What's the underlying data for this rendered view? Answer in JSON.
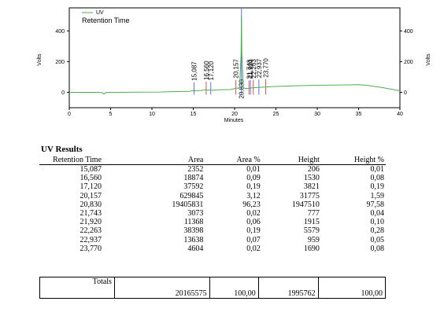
{
  "chart_data": {
    "type": "line",
    "xlabel": "Minutes",
    "ylabel_left": "Volts",
    "ylabel_right": "Volts",
    "xlim": [
      0,
      40
    ],
    "ylim": [
      -100,
      550
    ],
    "x_ticks": [
      0,
      5,
      10,
      15,
      20,
      25,
      30,
      35,
      40
    ],
    "y_ticks": [
      0,
      200,
      400
    ],
    "legend": {
      "entries": [
        "UV",
        "Retention Time"
      ],
      "placement": "top-left"
    },
    "series": [
      {
        "name": "UV",
        "color": "#4caf50",
        "x": [
          0,
          3.5,
          4.0,
          4.2,
          4.4,
          4.6,
          4.8,
          5.2,
          8,
          11,
          12,
          14.5,
          15.0,
          15.09,
          15.2,
          16.0,
          16.56,
          16.7,
          17.12,
          17.3,
          18,
          19.5,
          20.0,
          20.16,
          20.3,
          20.6,
          20.78,
          20.83,
          20.88,
          21.05,
          21.3,
          21.74,
          21.92,
          22.26,
          22.94,
          23.77,
          25,
          27,
          30,
          33,
          35,
          36,
          38,
          40
        ],
        "y": [
          0,
          0,
          -2,
          -12,
          -3,
          0,
          0,
          0,
          1,
          2,
          4,
          6,
          12,
          14,
          10,
          12,
          18,
          14,
          16,
          13,
          16,
          18,
          24,
          30,
          26,
          30,
          240,
          500,
          260,
          30,
          25,
          26,
          28,
          30,
          32,
          35,
          38,
          42,
          46,
          48,
          50,
          46,
          30,
          10
        ]
      }
    ],
    "peak_labels": [
      "15,087",
      "16,560",
      "17,120",
      "20,157",
      "20,830",
      "21,743",
      "21,920",
      "22,263",
      "22,937",
      "23,770"
    ],
    "peak_times": [
      15.087,
      16.56,
      17.12,
      20.157,
      20.83,
      21.743,
      21.92,
      22.263,
      22.937,
      23.77
    ]
  },
  "results": {
    "title": "UV Results",
    "headers": [
      "Retention Time",
      "Area",
      "Area %",
      "Height",
      "Height %"
    ],
    "rows": [
      [
        "15,087",
        "2352",
        "0,01",
        "206",
        "0,01"
      ],
      [
        "16,560",
        "18874",
        "0,09",
        "1530",
        "0,08"
      ],
      [
        "17,120",
        "37592",
        "0,19",
        "3821",
        "0,19"
      ],
      [
        "20,157",
        "629845",
        "3,12",
        "31775",
        "1,59"
      ],
      [
        "20,830",
        "19405831",
        "96,23",
        "1947510",
        "97,58"
      ],
      [
        "21,743",
        "3073",
        "0,02",
        "777",
        "0,04"
      ],
      [
        "21,920",
        "11368",
        "0,06",
        "1915",
        "0,10"
      ],
      [
        "22,263",
        "38398",
        "0,19",
        "5579",
        "0,28"
      ],
      [
        "22,937",
        "13638",
        "0,07",
        "959",
        "0,05"
      ],
      [
        "23,770",
        "4604",
        "0,02",
        "1690",
        "0,08"
      ]
    ],
    "totals": {
      "label": "Totals",
      "area": "20165575",
      "area_pct": "100,00",
      "height": "1995762",
      "height_pct": "100,00"
    }
  }
}
